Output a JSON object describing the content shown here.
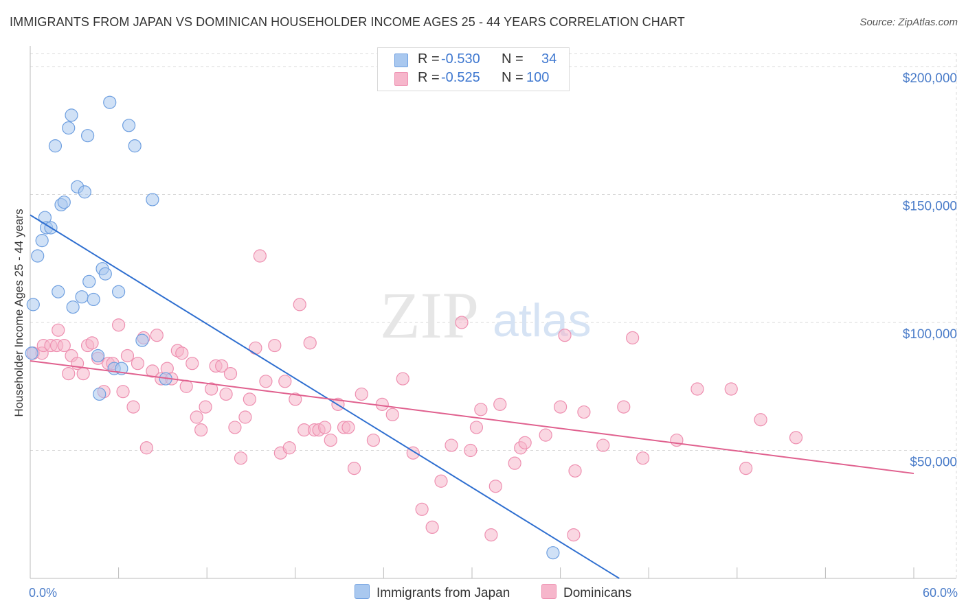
{
  "header": {
    "title": "IMMIGRANTS FROM JAPAN VS DOMINICAN HOUSEHOLDER INCOME AGES 25 - 44 YEARS CORRELATION CHART",
    "source": "Source: ZipAtlas.com"
  },
  "watermark": {
    "zip": "ZIP",
    "atlas": "atlas"
  },
  "legend": {
    "rows": [
      {
        "r_label": "R =",
        "r_value": "-0.530",
        "n_label": "N =",
        "n_value": "34",
        "color": "#a9c8ef"
      },
      {
        "r_label": "R =",
        "r_value": "-0.525",
        "n_label": "N =",
        "n_value": "100",
        "color": "#f6b6cb"
      }
    ]
  },
  "bottom_legend": [
    {
      "label": "Immigrants from Japan",
      "color": "#a9c8ef"
    },
    {
      "label": "Dominicans",
      "color": "#f6b6cb"
    }
  ],
  "colors": {
    "japan_fill": "#a9c8ef",
    "japan_stroke": "#6e9fe0",
    "japan_line": "#2f6fd0",
    "dom_fill": "#f6b6cb",
    "dom_stroke": "#ee8fb0",
    "dom_line": "#e0608e",
    "grid": "#d9d9d9",
    "axis_text": "#4a7cc9"
  },
  "chart_data": {
    "type": "scatter",
    "title": "IMMIGRANTS FROM JAPAN VS DOMINICAN HOUSEHOLDER INCOME AGES 25 - 44 YEARS CORRELATION CHART",
    "xlabel": "",
    "ylabel": "Householder Income Ages 25 - 44 years",
    "xlim": [
      0,
      60
    ],
    "ylim": [
      0,
      205000
    ],
    "x_tick_labels": {
      "left": "0.0%",
      "right": "60.0%"
    },
    "y_ticks": [
      {
        "value": 50000,
        "label": "$50,000"
      },
      {
        "value": 100000,
        "label": "$100,000"
      },
      {
        "value": 150000,
        "label": "$150,000"
      },
      {
        "value": 200000,
        "label": "$200,000"
      }
    ],
    "series": [
      {
        "name": "Immigrants from Japan",
        "r": -0.53,
        "n": 34,
        "trend": {
          "x1": 0.0,
          "y1": 142000,
          "x2": 40.0,
          "y2": 0
        },
        "points": [
          [
            0.2,
            107000
          ],
          [
            0.5,
            126000
          ],
          [
            0.8,
            132000
          ],
          [
            1.0,
            141000
          ],
          [
            1.1,
            137000
          ],
          [
            1.4,
            137000
          ],
          [
            1.7,
            169000
          ],
          [
            1.9,
            112000
          ],
          [
            2.1,
            146000
          ],
          [
            2.3,
            147000
          ],
          [
            2.6,
            176000
          ],
          [
            2.8,
            181000
          ],
          [
            2.9,
            106000
          ],
          [
            3.2,
            153000
          ],
          [
            3.5,
            110000
          ],
          [
            3.7,
            151000
          ],
          [
            3.9,
            173000
          ],
          [
            4.0,
            116000
          ],
          [
            4.3,
            109000
          ],
          [
            4.6,
            87000
          ],
          [
            4.7,
            72000
          ],
          [
            4.9,
            121000
          ],
          [
            5.1,
            119000
          ],
          [
            5.4,
            186000
          ],
          [
            5.7,
            82000
          ],
          [
            6.0,
            112000
          ],
          [
            6.2,
            82000
          ],
          [
            6.7,
            177000
          ],
          [
            7.1,
            169000
          ],
          [
            7.6,
            93000
          ],
          [
            8.3,
            148000
          ],
          [
            9.2,
            78000
          ],
          [
            35.5,
            10000
          ],
          [
            0.1,
            88000
          ]
        ]
      },
      {
        "name": "Dominicans",
        "r": -0.525,
        "n": 100,
        "trend": {
          "x1": 0.0,
          "y1": 85000,
          "x2": 60.0,
          "y2": 41000
        },
        "points": [
          [
            0.2,
            88000
          ],
          [
            0.8,
            88000
          ],
          [
            0.9,
            91000
          ],
          [
            1.4,
            91000
          ],
          [
            1.8,
            91000
          ],
          [
            1.9,
            97000
          ],
          [
            2.3,
            91000
          ],
          [
            2.6,
            80000
          ],
          [
            2.8,
            87000
          ],
          [
            3.2,
            84000
          ],
          [
            3.6,
            80000
          ],
          [
            3.9,
            91000
          ],
          [
            4.2,
            92000
          ],
          [
            4.6,
            86000
          ],
          [
            5.0,
            73000
          ],
          [
            5.3,
            84000
          ],
          [
            5.6,
            84000
          ],
          [
            6.0,
            99000
          ],
          [
            6.3,
            73000
          ],
          [
            6.6,
            87000
          ],
          [
            7.0,
            67000
          ],
          [
            7.3,
            84000
          ],
          [
            7.7,
            94000
          ],
          [
            7.9,
            51000
          ],
          [
            8.3,
            81000
          ],
          [
            8.6,
            95000
          ],
          [
            8.9,
            78000
          ],
          [
            9.3,
            82000
          ],
          [
            9.6,
            78000
          ],
          [
            10.0,
            89000
          ],
          [
            10.3,
            88000
          ],
          [
            10.6,
            75000
          ],
          [
            11.0,
            84000
          ],
          [
            11.3,
            63000
          ],
          [
            11.6,
            58000
          ],
          [
            11.9,
            67000
          ],
          [
            12.3,
            74000
          ],
          [
            12.6,
            83000
          ],
          [
            13.0,
            83000
          ],
          [
            13.3,
            72000
          ],
          [
            13.6,
            80000
          ],
          [
            13.9,
            59000
          ],
          [
            14.3,
            47000
          ],
          [
            14.6,
            63000
          ],
          [
            14.9,
            70000
          ],
          [
            15.3,
            90000
          ],
          [
            15.6,
            126000
          ],
          [
            16.0,
            77000
          ],
          [
            16.6,
            91000
          ],
          [
            17.0,
            49000
          ],
          [
            17.3,
            77000
          ],
          [
            17.6,
            51000
          ],
          [
            18.0,
            70000
          ],
          [
            18.3,
            107000
          ],
          [
            18.6,
            58000
          ],
          [
            19.0,
            92000
          ],
          [
            19.3,
            58000
          ],
          [
            19.6,
            58000
          ],
          [
            20.0,
            59000
          ],
          [
            20.4,
            54000
          ],
          [
            20.9,
            68000
          ],
          [
            21.3,
            59000
          ],
          [
            21.6,
            59000
          ],
          [
            22.0,
            43000
          ],
          [
            22.5,
            72000
          ],
          [
            23.3,
            54000
          ],
          [
            23.9,
            68000
          ],
          [
            24.6,
            64000
          ],
          [
            25.3,
            78000
          ],
          [
            26.0,
            49000
          ],
          [
            26.6,
            27000
          ],
          [
            27.3,
            20000
          ],
          [
            27.9,
            38000
          ],
          [
            28.6,
            52000
          ],
          [
            29.3,
            100000
          ],
          [
            29.9,
            50000
          ],
          [
            30.3,
            59000
          ],
          [
            30.6,
            66000
          ],
          [
            31.3,
            17000
          ],
          [
            31.6,
            36000
          ],
          [
            31.9,
            68000
          ],
          [
            32.9,
            45000
          ],
          [
            33.3,
            51000
          ],
          [
            33.6,
            53000
          ],
          [
            35.0,
            56000
          ],
          [
            36.0,
            67000
          ],
          [
            36.3,
            95000
          ],
          [
            37.0,
            42000
          ],
          [
            37.6,
            65000
          ],
          [
            38.9,
            52000
          ],
          [
            40.3,
            67000
          ],
          [
            40.9,
            94000
          ],
          [
            41.6,
            47000
          ],
          [
            43.9,
            54000
          ],
          [
            45.3,
            74000
          ],
          [
            47.6,
            74000
          ],
          [
            48.6,
            43000
          ],
          [
            49.6,
            62000
          ],
          [
            52.0,
            55000
          ],
          [
            36.9,
            17000
          ]
        ]
      }
    ]
  }
}
